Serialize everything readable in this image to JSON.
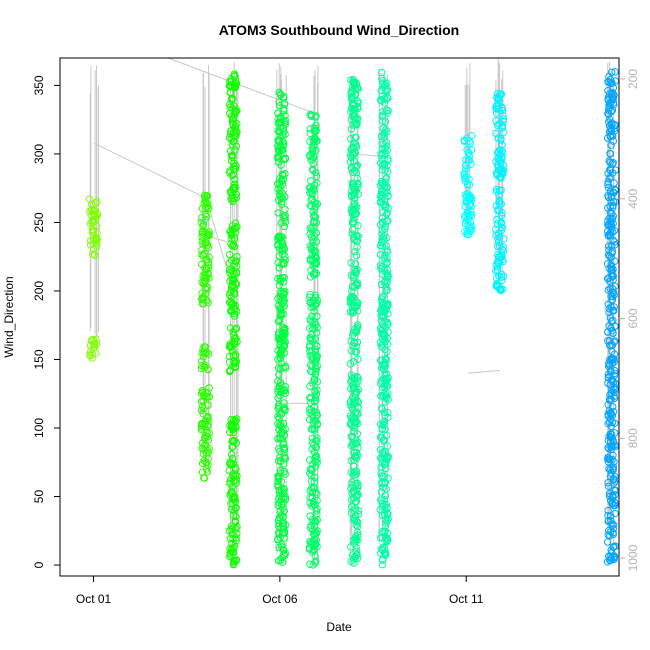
{
  "chart_data": {
    "type": "scatter",
    "title": "ATOM3 Southbound Wind_Direction",
    "xlabel": "Date",
    "ylabel": "Wind_Direction",
    "x_ticks": [
      {
        "label": "Oct 01",
        "day": 1
      },
      {
        "label": "Oct 06",
        "day": 6
      },
      {
        "label": "Oct 11",
        "day": 11
      }
    ],
    "y_ticks": [
      0,
      50,
      100,
      150,
      200,
      250,
      300,
      350
    ],
    "y_right_ticks": [
      200,
      400,
      600,
      800,
      1000
    ],
    "xlim_days": [
      0.1,
      15.1
    ],
    "ylim": [
      -8,
      370
    ],
    "ylim_right": [
      1030,
      165
    ],
    "grid": false,
    "legend": "none",
    "secondary_series_color": "#c8c8c8",
    "clusters": [
      {
        "day": 1.0,
        "color": "#80ff00",
        "segments": [
          [
            225,
            268
          ],
          [
            150,
            168
          ]
        ]
      },
      {
        "day": 4.0,
        "color": "#2bff00",
        "segments": [
          [
            240,
            270
          ],
          [
            190,
            245
          ],
          [
            140,
            160
          ],
          [
            63,
            130
          ]
        ]
      },
      {
        "day": 4.75,
        "color": "#11ff00",
        "segments": [
          [
            265,
            360
          ],
          [
            140,
            250
          ],
          [
            0,
            110
          ]
        ]
      },
      {
        "day": 6.05,
        "color": "#00ff40",
        "segments": [
          [
            215,
            345
          ],
          [
            150,
            210
          ],
          [
            0,
            175
          ]
        ]
      },
      {
        "day": 6.9,
        "color": "#00ff66",
        "segments": [
          [
            210,
            330
          ],
          [
            0,
            200
          ]
        ]
      },
      {
        "day": 8.0,
        "color": "#00ff8f",
        "segments": [
          [
            200,
            355
          ],
          [
            0,
            200
          ]
        ]
      },
      {
        "day": 8.8,
        "color": "#00ffa6",
        "segments": [
          [
            150,
            360
          ],
          [
            0,
            150
          ]
        ]
      },
      {
        "day": 11.05,
        "color": "#00ffff",
        "segments": [
          [
            240,
            315
          ]
        ]
      },
      {
        "day": 11.9,
        "color": "#00f2ff",
        "segments": [
          [
            200,
            345
          ]
        ]
      },
      {
        "day": 14.9,
        "color": "#00a5ff",
        "segments": [
          [
            215,
            360
          ],
          [
            100,
            215
          ],
          [
            0,
            100
          ]
        ]
      }
    ]
  }
}
